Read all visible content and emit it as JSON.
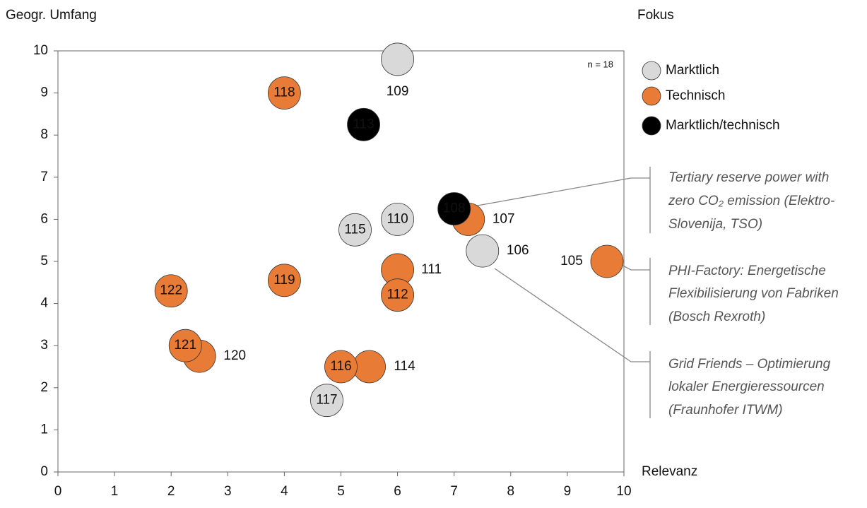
{
  "chart_data": {
    "type": "scatter",
    "x_label": "Relevanz",
    "y_label": "Geogr. Umfang",
    "legend_title": "Fokus",
    "note": "n = 18",
    "xlim": [
      0,
      10
    ],
    "ylim": [
      0,
      10
    ],
    "xticks": [
      0,
      1,
      2,
      3,
      4,
      5,
      6,
      7,
      8,
      9,
      10
    ],
    "yticks": [
      0,
      1,
      2,
      3,
      4,
      5,
      6,
      7,
      8,
      9,
      10
    ],
    "series": [
      {
        "name": "Marktlich",
        "color": "#d9d9d9",
        "labels": [
          "109",
          "110",
          "115",
          "106",
          "117"
        ],
        "x": [
          6,
          6,
          5.25,
          7.5,
          4.75
        ],
        "values": [
          9.8,
          6.0,
          5.75,
          5.25,
          1.7
        ]
      },
      {
        "name": "Technisch",
        "color": "#e87b35",
        "labels": [
          "118",
          "107",
          "105",
          "111",
          "112",
          "119",
          "122",
          "120",
          "121",
          "114",
          "116"
        ],
        "x": [
          4,
          7.25,
          9.7,
          6,
          6,
          4,
          2,
          2.5,
          2.25,
          5.5,
          5
        ],
        "values": [
          9.0,
          6.0,
          5.0,
          4.8,
          4.2,
          4.55,
          4.3,
          2.75,
          3.0,
          2.5,
          2.5
        ]
      },
      {
        "name": "Marktlich/technisch",
        "color": "#000000",
        "labels": [
          "113",
          "108"
        ],
        "x": [
          5.4,
          7.0
        ],
        "values": [
          8.25,
          6.25
        ]
      }
    ],
    "annotations": [
      [
        "Tertiary reserve power with",
        "zero CO₂ emission (Elektro-",
        "Slovenija, TSO)"
      ],
      [
        "PHI-Factory: Energetische",
        "Flexibilisierung von Fabriken",
        "(Bosch Rexroth)"
      ],
      [
        "Grid Friends – Optimierung",
        "lokaler Energieressourcen",
        "(Fraunhofer ITWM)"
      ]
    ]
  }
}
